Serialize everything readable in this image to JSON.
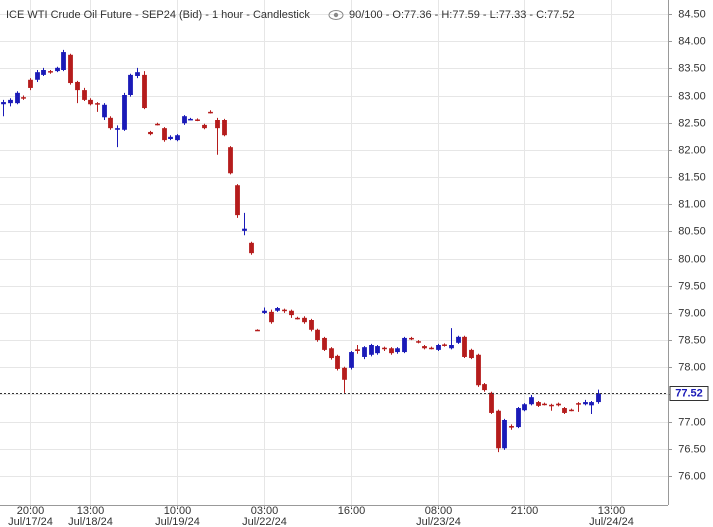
{
  "chart_data": {
    "type": "candlestick",
    "title": "ICE WTI Crude Oil Future - SEP24 (Bid) - 1 hour - Candlestick",
    "legend_text": "90/100 - O:77.36 - H:77.59 - L:77.33 - C:77.52",
    "x": [
      0,
      1,
      2,
      3,
      4,
      5,
      6,
      7,
      8,
      9,
      10,
      11,
      12,
      13,
      14,
      15,
      16,
      17,
      18,
      19,
      20,
      21,
      22,
      23,
      24,
      25,
      26,
      27,
      28,
      29,
      30,
      31,
      32,
      33,
      34,
      35,
      36,
      37,
      38,
      39,
      40,
      41,
      42,
      43,
      44,
      45,
      46,
      47,
      48,
      49,
      50,
      51,
      52,
      53,
      54,
      55,
      56,
      57,
      58,
      59,
      60,
      61,
      62,
      63,
      64,
      65,
      66,
      67,
      68,
      69,
      70,
      71,
      72,
      73,
      74,
      75,
      76,
      77,
      78,
      79,
      80,
      81,
      82,
      83,
      84,
      85,
      86,
      87,
      88,
      89
    ],
    "open": [
      82.84,
      82.86,
      82.86,
      82.97,
      83.29,
      83.29,
      83.38,
      83.45,
      83.45,
      83.47,
      83.75,
      83.25,
      83.1,
      82.92,
      82.86,
      82.6,
      82.59,
      82.37,
      82.37,
      83.01,
      83.36,
      83.38,
      82.33,
      82.48,
      82.4,
      82.2,
      82.18,
      82.49,
      82.57,
      82.56,
      82.46,
      82.7,
      82.55,
      82.55,
      82.05,
      81.35,
      80.51,
      80.29,
      78.69,
      79.0,
      79.02,
      79.04,
      79.06,
      79.04,
      78.91,
      78.91,
      78.87,
      78.69,
      78.54,
      78.35,
      78.21,
      77.99,
      77.99,
      78.33,
      78.19,
      78.23,
      78.26,
      78.36,
      78.35,
      78.28,
      78.28,
      78.54,
      78.48,
      78.39,
      78.36,
      78.32,
      78.42,
      78.35,
      78.45,
      78.56,
      78.32,
      78.23,
      77.69,
      77.53,
      77.2,
      76.51,
      76.92,
      76.9,
      77.21,
      77.32,
      77.36,
      77.33,
      77.31,
      77.33,
      77.25,
      77.22,
      77.34,
      77.32,
      77.3,
      77.36
    ],
    "high": [
      82.92,
      82.95,
      83.08,
      83.0,
      83.32,
      83.47,
      83.51,
      83.47,
      83.53,
      83.84,
      83.77,
      83.27,
      83.14,
      82.95,
      82.88,
      82.86,
      82.62,
      82.45,
      83.05,
      83.4,
      83.51,
      83.45,
      82.35,
      82.5,
      82.42,
      82.27,
      82.29,
      82.64,
      82.59,
      82.58,
      82.48,
      82.73,
      82.59,
      82.57,
      82.07,
      81.37,
      80.84,
      80.31,
      78.7,
      79.1,
      79.06,
      79.11,
      79.08,
      79.06,
      78.93,
      78.94,
      78.89,
      78.71,
      78.56,
      78.37,
      78.23,
      78.01,
      78.3,
      78.41,
      78.39,
      78.43,
      78.41,
      78.38,
      78.37,
      78.37,
      78.56,
      78.56,
      78.5,
      78.41,
      78.38,
      78.43,
      78.44,
      78.72,
      78.58,
      78.58,
      78.34,
      78.25,
      77.71,
      77.55,
      77.22,
      77.05,
      76.95,
      77.27,
      77.34,
      77.49,
      77.38,
      77.35,
      77.33,
      77.35,
      77.27,
      77.24,
      77.36,
      77.4,
      77.38,
      77.59
    ],
    "low": [
      82.62,
      82.8,
      82.84,
      82.92,
      83.1,
      83.25,
      83.36,
      83.4,
      83.43,
      83.45,
      83.2,
      82.86,
      82.9,
      82.82,
      82.7,
      82.55,
      82.37,
      82.05,
      82.35,
      82.98,
      83.32,
      82.75,
      82.27,
      82.45,
      82.15,
      82.18,
      82.16,
      82.46,
      82.55,
      82.53,
      82.38,
      82.67,
      81.91,
      82.25,
      81.55,
      80.75,
      80.43,
      80.07,
      78.67,
      78.98,
      78.8,
      79.02,
      79.0,
      78.91,
      78.88,
      78.8,
      78.66,
      78.47,
      78.3,
      78.14,
      77.94,
      77.53,
      77.96,
      78.25,
      78.15,
      78.2,
      78.23,
      78.3,
      78.23,
      78.25,
      78.26,
      78.5,
      78.44,
      78.33,
      78.33,
      78.3,
      78.38,
      78.33,
      78.43,
      78.17,
      78.15,
      77.64,
      77.55,
      77.14,
      76.44,
      76.48,
      76.85,
      76.88,
      77.19,
      77.3,
      77.27,
      77.3,
      77.2,
      77.28,
      77.14,
      77.19,
      77.18,
      77.3,
      77.14,
      77.33
    ],
    "close": [
      82.88,
      82.92,
      83.05,
      82.95,
      83.14,
      83.43,
      83.47,
      83.43,
      83.51,
      83.8,
      83.23,
      83.1,
      82.92,
      82.84,
      82.85,
      82.83,
      82.4,
      82.4,
      83.01,
      83.38,
      83.43,
      82.77,
      82.29,
      82.47,
      82.18,
      82.24,
      82.27,
      82.62,
      82.57,
      82.55,
      82.4,
      82.69,
      82.4,
      82.27,
      81.57,
      80.8,
      80.55,
      80.1,
      78.68,
      79.04,
      78.83,
      79.09,
      79.04,
      78.96,
      78.9,
      78.83,
      78.69,
      78.5,
      78.32,
      78.17,
      77.97,
      77.77,
      78.28,
      78.3,
      78.37,
      78.41,
      78.39,
      78.34,
      78.26,
      78.35,
      78.54,
      78.53,
      78.46,
      78.35,
      78.35,
      78.41,
      78.4,
      78.41,
      78.56,
      78.19,
      78.17,
      77.67,
      77.58,
      77.16,
      76.51,
      77.03,
      76.89,
      77.25,
      77.32,
      77.45,
      77.29,
      77.32,
      77.3,
      77.3,
      77.16,
      77.21,
      77.33,
      77.36,
      77.36,
      77.52
    ],
    "up_color": "#1a1ab8",
    "down_color": "#b51c1c",
    "xlim": [
      -0.5,
      99.5
    ],
    "xticks": [
      {
        "value": 4,
        "label": "20:00",
        "date": "Jul/17/24"
      },
      {
        "value": 13,
        "label": "13:00",
        "date": "Jul/18/24"
      },
      {
        "value": 26,
        "label": "10:00",
        "date": "Jul/19/24"
      },
      {
        "value": 39,
        "label": "03:00",
        "date": "Jul/22/24"
      },
      {
        "value": 52,
        "label": "16:00"
      },
      {
        "value": 65,
        "label": "08:00",
        "date": "Jul/23/24"
      },
      {
        "value": 78,
        "label": "21:00"
      },
      {
        "value": 91,
        "label": "13:00",
        "date": "Jul/24/24"
      }
    ],
    "ylim": [
      75.466,
      84.758
    ],
    "yticks": [
      {
        "value": 76,
        "label": "76.00"
      },
      {
        "value": 76.5,
        "label": "76.50"
      },
      {
        "value": 77,
        "label": "77.00"
      },
      {
        "value": 77.5,
        "label": "77.50"
      },
      {
        "value": 78,
        "label": "78.00"
      },
      {
        "value": 78.5,
        "label": "78.50"
      },
      {
        "value": 79,
        "label": "79.00"
      },
      {
        "value": 79.5,
        "label": "79.50"
      },
      {
        "value": 80,
        "label": "80.00"
      },
      {
        "value": 80.5,
        "label": "80.50"
      },
      {
        "value": 81,
        "label": "81.00"
      },
      {
        "value": 81.5,
        "label": "81.50"
      },
      {
        "value": 82,
        "label": "82.00"
      },
      {
        "value": 82.5,
        "label": "82.50"
      },
      {
        "value": 83,
        "label": "83.00"
      },
      {
        "value": 83.5,
        "label": "83.50"
      },
      {
        "value": 84,
        "label": "84.00"
      },
      {
        "value": 84.5,
        "label": "84.50"
      }
    ],
    "grid": true,
    "last_price": 77.52
  }
}
